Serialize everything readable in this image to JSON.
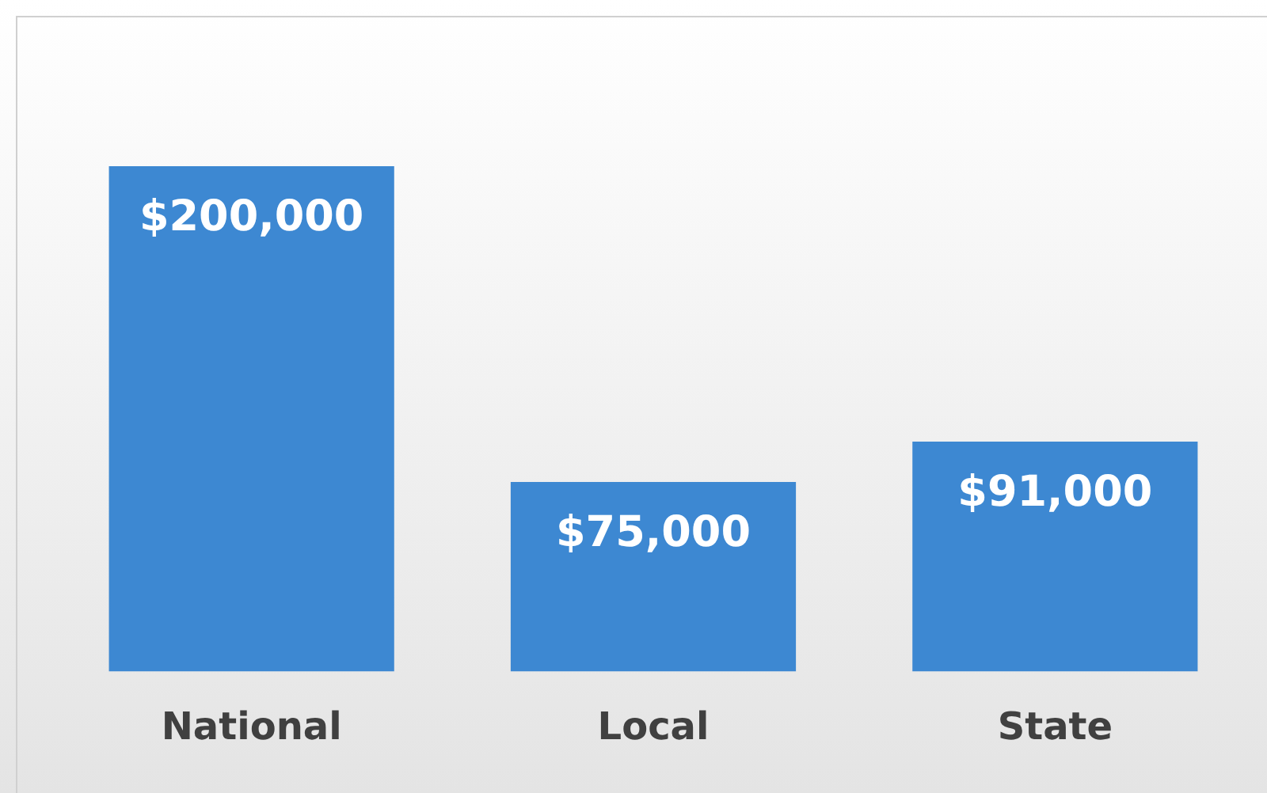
{
  "chart_data": {
    "type": "bar",
    "categories": [
      "National",
      "Local",
      "State"
    ],
    "values": [
      200000,
      75000,
      91000
    ],
    "value_labels": [
      "$200,000",
      "$75,000",
      "$91,000"
    ],
    "color": "#3d88d2"
  }
}
